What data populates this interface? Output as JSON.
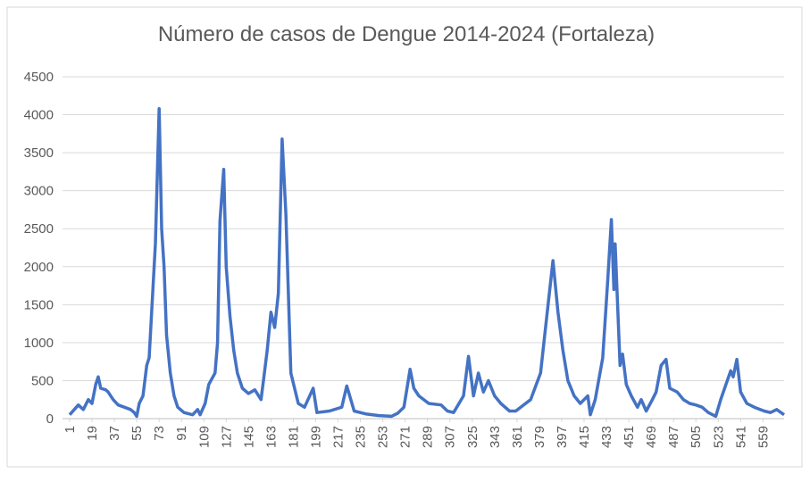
{
  "chart_data": {
    "type": "line",
    "title": "Número de casos de Dengue 2014-2024 (Fortaleza)",
    "xlim": [
      1,
      576
    ],
    "xticks": [
      1,
      19,
      37,
      55,
      73,
      91,
      109,
      127,
      145,
      163,
      181,
      199,
      217,
      235,
      253,
      271,
      289,
      307,
      325,
      343,
      361,
      379,
      397,
      415,
      433,
      451,
      469,
      487,
      505,
      523,
      541,
      559
    ],
    "ylim": [
      0,
      4500
    ],
    "yticks": [
      0,
      500,
      1000,
      1500,
      2000,
      2500,
      3000,
      3500,
      4000,
      4500
    ],
    "grid": true,
    "series": [
      {
        "color": "#4472c4",
        "x": [
          1,
          8,
          12,
          16,
          19,
          22,
          24,
          26,
          30,
          32,
          36,
          40,
          45,
          50,
          53,
          55,
          57,
          60,
          63,
          65,
          70,
          73,
          75,
          77,
          79,
          82,
          85,
          88,
          93,
          100,
          104,
          106,
          110,
          113,
          118,
          120,
          122,
          125,
          127,
          130,
          133,
          136,
          140,
          145,
          150,
          155,
          157,
          160,
          163,
          166,
          169,
          172,
          175,
          179,
          185,
          190,
          197,
          200,
          210,
          220,
          224,
          230,
          240,
          250,
          260,
          265,
          270,
          275,
          278,
          282,
          290,
          300,
          305,
          310,
          318,
          322,
          326,
          330,
          334,
          338,
          343,
          348,
          355,
          360,
          372,
          380,
          385,
          390,
          394,
          398,
          402,
          407,
          412,
          418,
          420,
          424,
          430,
          434,
          437,
          439,
          440,
          444,
          446,
          449,
          453,
          458,
          461,
          465,
          470,
          473,
          477,
          481,
          484,
          490,
          495,
          500,
          505,
          510,
          515,
          521,
          525,
          533,
          535,
          538,
          541,
          546,
          552,
          560,
          565,
          570,
          576
        ],
        "values": [
          50,
          180,
          120,
          250,
          200,
          450,
          550,
          400,
          380,
          350,
          250,
          180,
          150,
          120,
          80,
          30,
          200,
          300,
          700,
          800,
          2300,
          4080,
          2500,
          2000,
          1100,
          600,
          300,
          150,
          80,
          50,
          120,
          50,
          200,
          450,
          600,
          1000,
          2600,
          3280,
          2000,
          1350,
          900,
          600,
          400,
          330,
          380,
          250,
          500,
          900,
          1400,
          1200,
          1650,
          3680,
          2700,
          600,
          200,
          150,
          400,
          80,
          100,
          150,
          430,
          100,
          60,
          40,
          30,
          70,
          150,
          650,
          400,
          300,
          200,
          180,
          100,
          80,
          300,
          820,
          300,
          600,
          350,
          500,
          300,
          200,
          100,
          100,
          250,
          600,
          1350,
          2080,
          1400,
          900,
          500,
          300,
          200,
          300,
          50,
          250,
          800,
          1800,
          2620,
          1700,
          2300,
          700,
          850,
          450,
          300,
          150,
          250,
          100,
          250,
          350,
          700,
          780,
          400,
          350,
          250,
          200,
          180,
          150,
          80,
          30,
          250,
          630,
          550,
          780,
          350,
          200,
          150,
          100,
          80,
          120,
          50
        ]
      }
    ]
  }
}
